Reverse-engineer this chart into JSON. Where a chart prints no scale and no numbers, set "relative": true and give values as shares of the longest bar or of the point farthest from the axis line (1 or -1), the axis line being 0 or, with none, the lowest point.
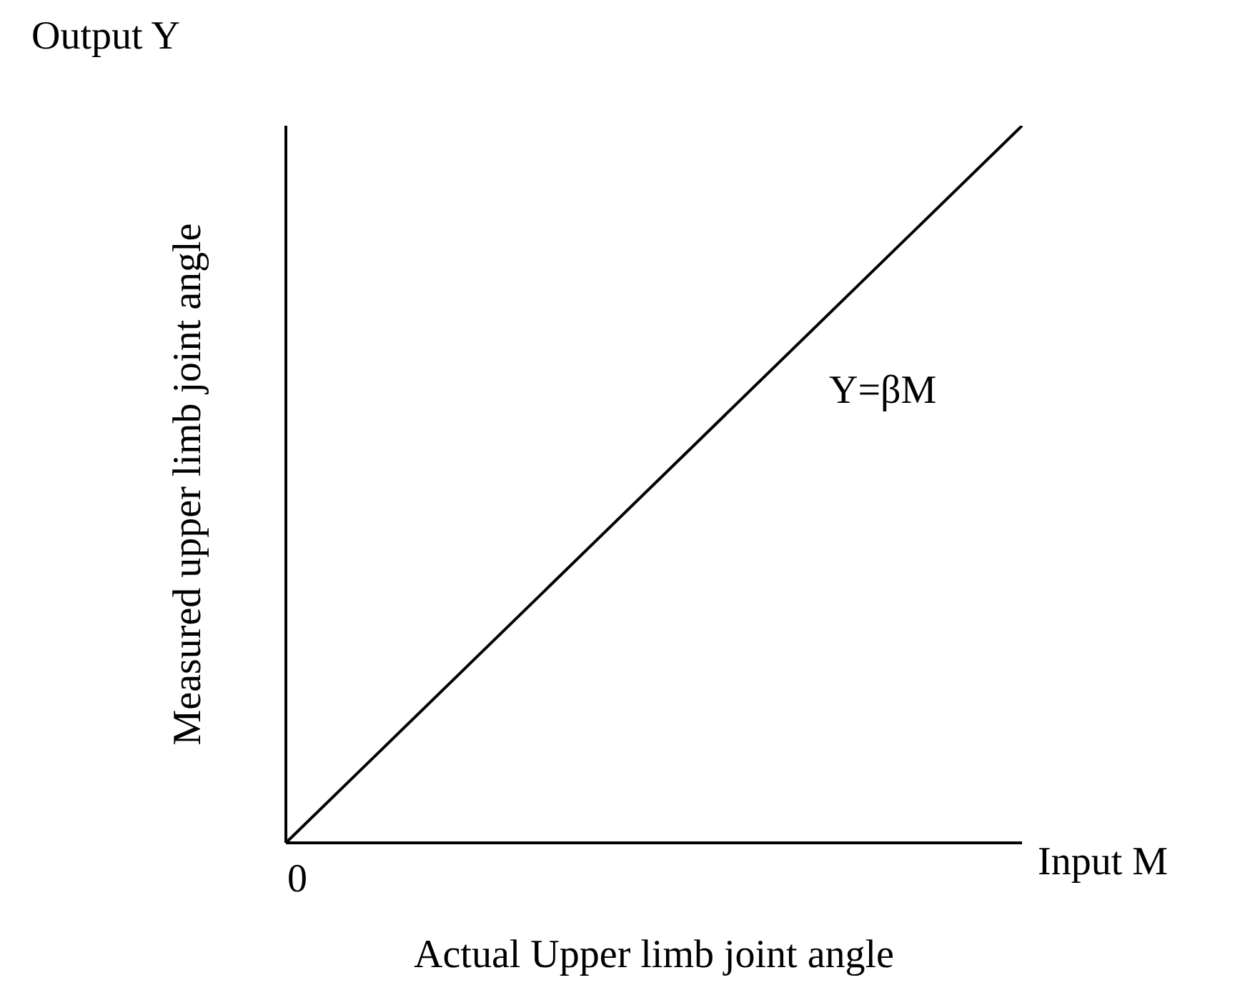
{
  "chart_data": {
    "type": "line",
    "relative": true,
    "xlabel": "Actual Upper limb joint angle",
    "ylabel": "Measured upper limb joint angle",
    "categories": [
      null,
      null
    ],
    "series": [
      {
        "color": "#000000",
        "values": [
          0,
          1
        ]
      }
    ],
    "annotations": [
      "Output Y",
      "Input M",
      "Y=βM",
      "0"
    ],
    "grid": false,
    "legend": false,
    "marker": "none",
    "line_style": "solid"
  }
}
